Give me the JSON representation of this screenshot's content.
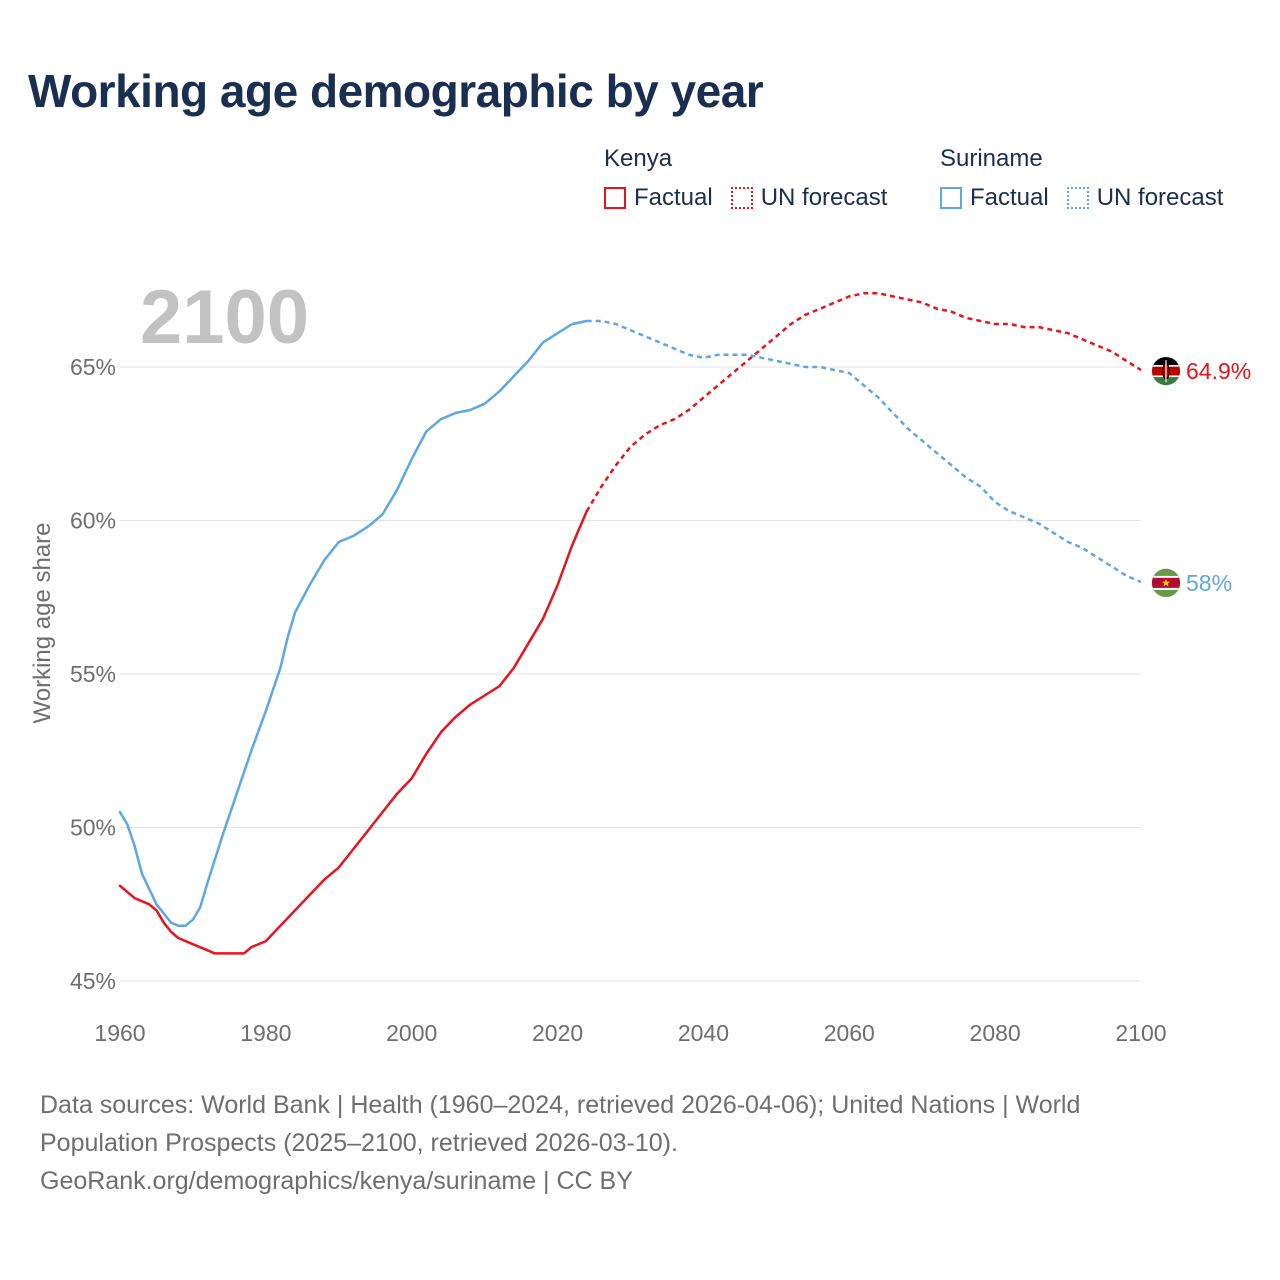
{
  "title": "Working age demographic by year",
  "legend": {
    "groups": [
      {
        "name": "Kenya",
        "color": "#e8141c",
        "factual_label": "Factual",
        "forecast_label": "UN forecast"
      },
      {
        "name": "Suriname",
        "color": "#5fa6e6",
        "factual_label": "Factual",
        "forecast_label": "UN forecast"
      }
    ]
  },
  "footer": {
    "line1": "Data sources: World Bank | Health (1960–2024, retrieved 2026-04-06); United Nations | World",
    "line2": "Population Prospects (2025–2100, retrieved 2026-03-10).",
    "line3": "GeoRank.org/demographics/kenya/suriname | CC BY"
  },
  "chart_data": {
    "type": "line",
    "year_label": "2100",
    "ylabel": "Working age share",
    "xlim": [
      1960,
      2100
    ],
    "ylim": [
      45,
      67.5
    ],
    "x_ticks": [
      1960,
      1980,
      2000,
      2020,
      2040,
      2060,
      2080,
      2100
    ],
    "x_tick_labels": [
      "1960",
      "1980",
      "2000",
      "2020",
      "2040",
      "2060",
      "2080",
      "2100"
    ],
    "y_ticks": [
      45,
      50,
      55,
      60,
      65
    ],
    "y_tick_labels": [
      "45%",
      "50%",
      "55%",
      "60%",
      "65%"
    ],
    "forecast_start": 2024,
    "series": [
      {
        "name": "Kenya",
        "color": "#e8141c",
        "end_label": "64.9%",
        "flag": "kenya",
        "points": [
          [
            1960,
            48.1
          ],
          [
            1962,
            47.7
          ],
          [
            1964,
            47.5
          ],
          [
            1965,
            47.3
          ],
          [
            1966,
            46.9
          ],
          [
            1967,
            46.6
          ],
          [
            1968,
            46.4
          ],
          [
            1970,
            46.2
          ],
          [
            1972,
            46.0
          ],
          [
            1973,
            45.9
          ],
          [
            1975,
            45.9
          ],
          [
            1977,
            45.9
          ],
          [
            1978,
            46.1
          ],
          [
            1980,
            46.3
          ],
          [
            1982,
            46.8
          ],
          [
            1984,
            47.3
          ],
          [
            1986,
            47.8
          ],
          [
            1988,
            48.3
          ],
          [
            1990,
            48.7
          ],
          [
            1992,
            49.3
          ],
          [
            1994,
            49.9
          ],
          [
            1996,
            50.5
          ],
          [
            1998,
            51.1
          ],
          [
            2000,
            51.6
          ],
          [
            2002,
            52.4
          ],
          [
            2004,
            53.1
          ],
          [
            2006,
            53.6
          ],
          [
            2008,
            54.0
          ],
          [
            2010,
            54.3
          ],
          [
            2012,
            54.6
          ],
          [
            2014,
            55.2
          ],
          [
            2016,
            56.0
          ],
          [
            2018,
            56.8
          ],
          [
            2020,
            57.9
          ],
          [
            2022,
            59.2
          ],
          [
            2024,
            60.3
          ],
          [
            2026,
            61.1
          ],
          [
            2028,
            61.8
          ],
          [
            2030,
            62.4
          ],
          [
            2032,
            62.8
          ],
          [
            2034,
            63.1
          ],
          [
            2036,
            63.3
          ],
          [
            2038,
            63.6
          ],
          [
            2040,
            64.0
          ],
          [
            2042,
            64.4
          ],
          [
            2044,
            64.8
          ],
          [
            2046,
            65.2
          ],
          [
            2048,
            65.6
          ],
          [
            2050,
            66.0
          ],
          [
            2052,
            66.4
          ],
          [
            2054,
            66.7
          ],
          [
            2056,
            66.9
          ],
          [
            2058,
            67.1
          ],
          [
            2060,
            67.3
          ],
          [
            2062,
            67.4
          ],
          [
            2064,
            67.4
          ],
          [
            2066,
            67.3
          ],
          [
            2068,
            67.2
          ],
          [
            2070,
            67.1
          ],
          [
            2072,
            66.9
          ],
          [
            2074,
            66.8
          ],
          [
            2076,
            66.6
          ],
          [
            2078,
            66.5
          ],
          [
            2080,
            66.4
          ],
          [
            2082,
            66.4
          ],
          [
            2084,
            66.3
          ],
          [
            2086,
            66.3
          ],
          [
            2088,
            66.2
          ],
          [
            2090,
            66.1
          ],
          [
            2092,
            65.9
          ],
          [
            2094,
            65.7
          ],
          [
            2096,
            65.5
          ],
          [
            2098,
            65.2
          ],
          [
            2100,
            64.9
          ]
        ]
      },
      {
        "name": "Suriname",
        "color": "#5fa6e6",
        "end_label": "58%",
        "flag": "suriname",
        "points": [
          [
            1960,
            50.5
          ],
          [
            1961,
            50.1
          ],
          [
            1962,
            49.4
          ],
          [
            1963,
            48.5
          ],
          [
            1964,
            48.0
          ],
          [
            1965,
            47.5
          ],
          [
            1966,
            47.2
          ],
          [
            1967,
            46.9
          ],
          [
            1968,
            46.8
          ],
          [
            1969,
            46.8
          ],
          [
            1970,
            47.0
          ],
          [
            1971,
            47.4
          ],
          [
            1972,
            48.2
          ],
          [
            1974,
            49.7
          ],
          [
            1976,
            51.1
          ],
          [
            1978,
            52.5
          ],
          [
            1980,
            53.8
          ],
          [
            1982,
            55.2
          ],
          [
            1983,
            56.2
          ],
          [
            1984,
            57.0
          ],
          [
            1986,
            57.9
          ],
          [
            1988,
            58.7
          ],
          [
            1990,
            59.3
          ],
          [
            1992,
            59.5
          ],
          [
            1994,
            59.8
          ],
          [
            1996,
            60.2
          ],
          [
            1998,
            61.0
          ],
          [
            2000,
            62.0
          ],
          [
            2002,
            62.9
          ],
          [
            2004,
            63.3
          ],
          [
            2006,
            63.5
          ],
          [
            2008,
            63.6
          ],
          [
            2010,
            63.8
          ],
          [
            2012,
            64.2
          ],
          [
            2014,
            64.7
          ],
          [
            2016,
            65.2
          ],
          [
            2018,
            65.8
          ],
          [
            2020,
            66.1
          ],
          [
            2022,
            66.4
          ],
          [
            2024,
            66.5
          ],
          [
            2026,
            66.5
          ],
          [
            2028,
            66.4
          ],
          [
            2030,
            66.2
          ],
          [
            2032,
            66.0
          ],
          [
            2034,
            65.8
          ],
          [
            2036,
            65.6
          ],
          [
            2038,
            65.4
          ],
          [
            2040,
            65.3
          ],
          [
            2042,
            65.4
          ],
          [
            2044,
            65.4
          ],
          [
            2046,
            65.4
          ],
          [
            2048,
            65.3
          ],
          [
            2050,
            65.2
          ],
          [
            2052,
            65.1
          ],
          [
            2054,
            65.0
          ],
          [
            2056,
            65.0
          ],
          [
            2058,
            64.9
          ],
          [
            2060,
            64.8
          ],
          [
            2062,
            64.4
          ],
          [
            2064,
            64.0
          ],
          [
            2066,
            63.5
          ],
          [
            2068,
            63.0
          ],
          [
            2070,
            62.6
          ],
          [
            2072,
            62.2
          ],
          [
            2074,
            61.8
          ],
          [
            2076,
            61.4
          ],
          [
            2078,
            61.1
          ],
          [
            2080,
            60.6
          ],
          [
            2082,
            60.3
          ],
          [
            2084,
            60.1
          ],
          [
            2086,
            59.9
          ],
          [
            2088,
            59.6
          ],
          [
            2090,
            59.3
          ],
          [
            2092,
            59.1
          ],
          [
            2094,
            58.8
          ],
          [
            2096,
            58.5
          ],
          [
            2098,
            58.2
          ],
          [
            2100,
            58.0
          ]
        ]
      }
    ]
  }
}
